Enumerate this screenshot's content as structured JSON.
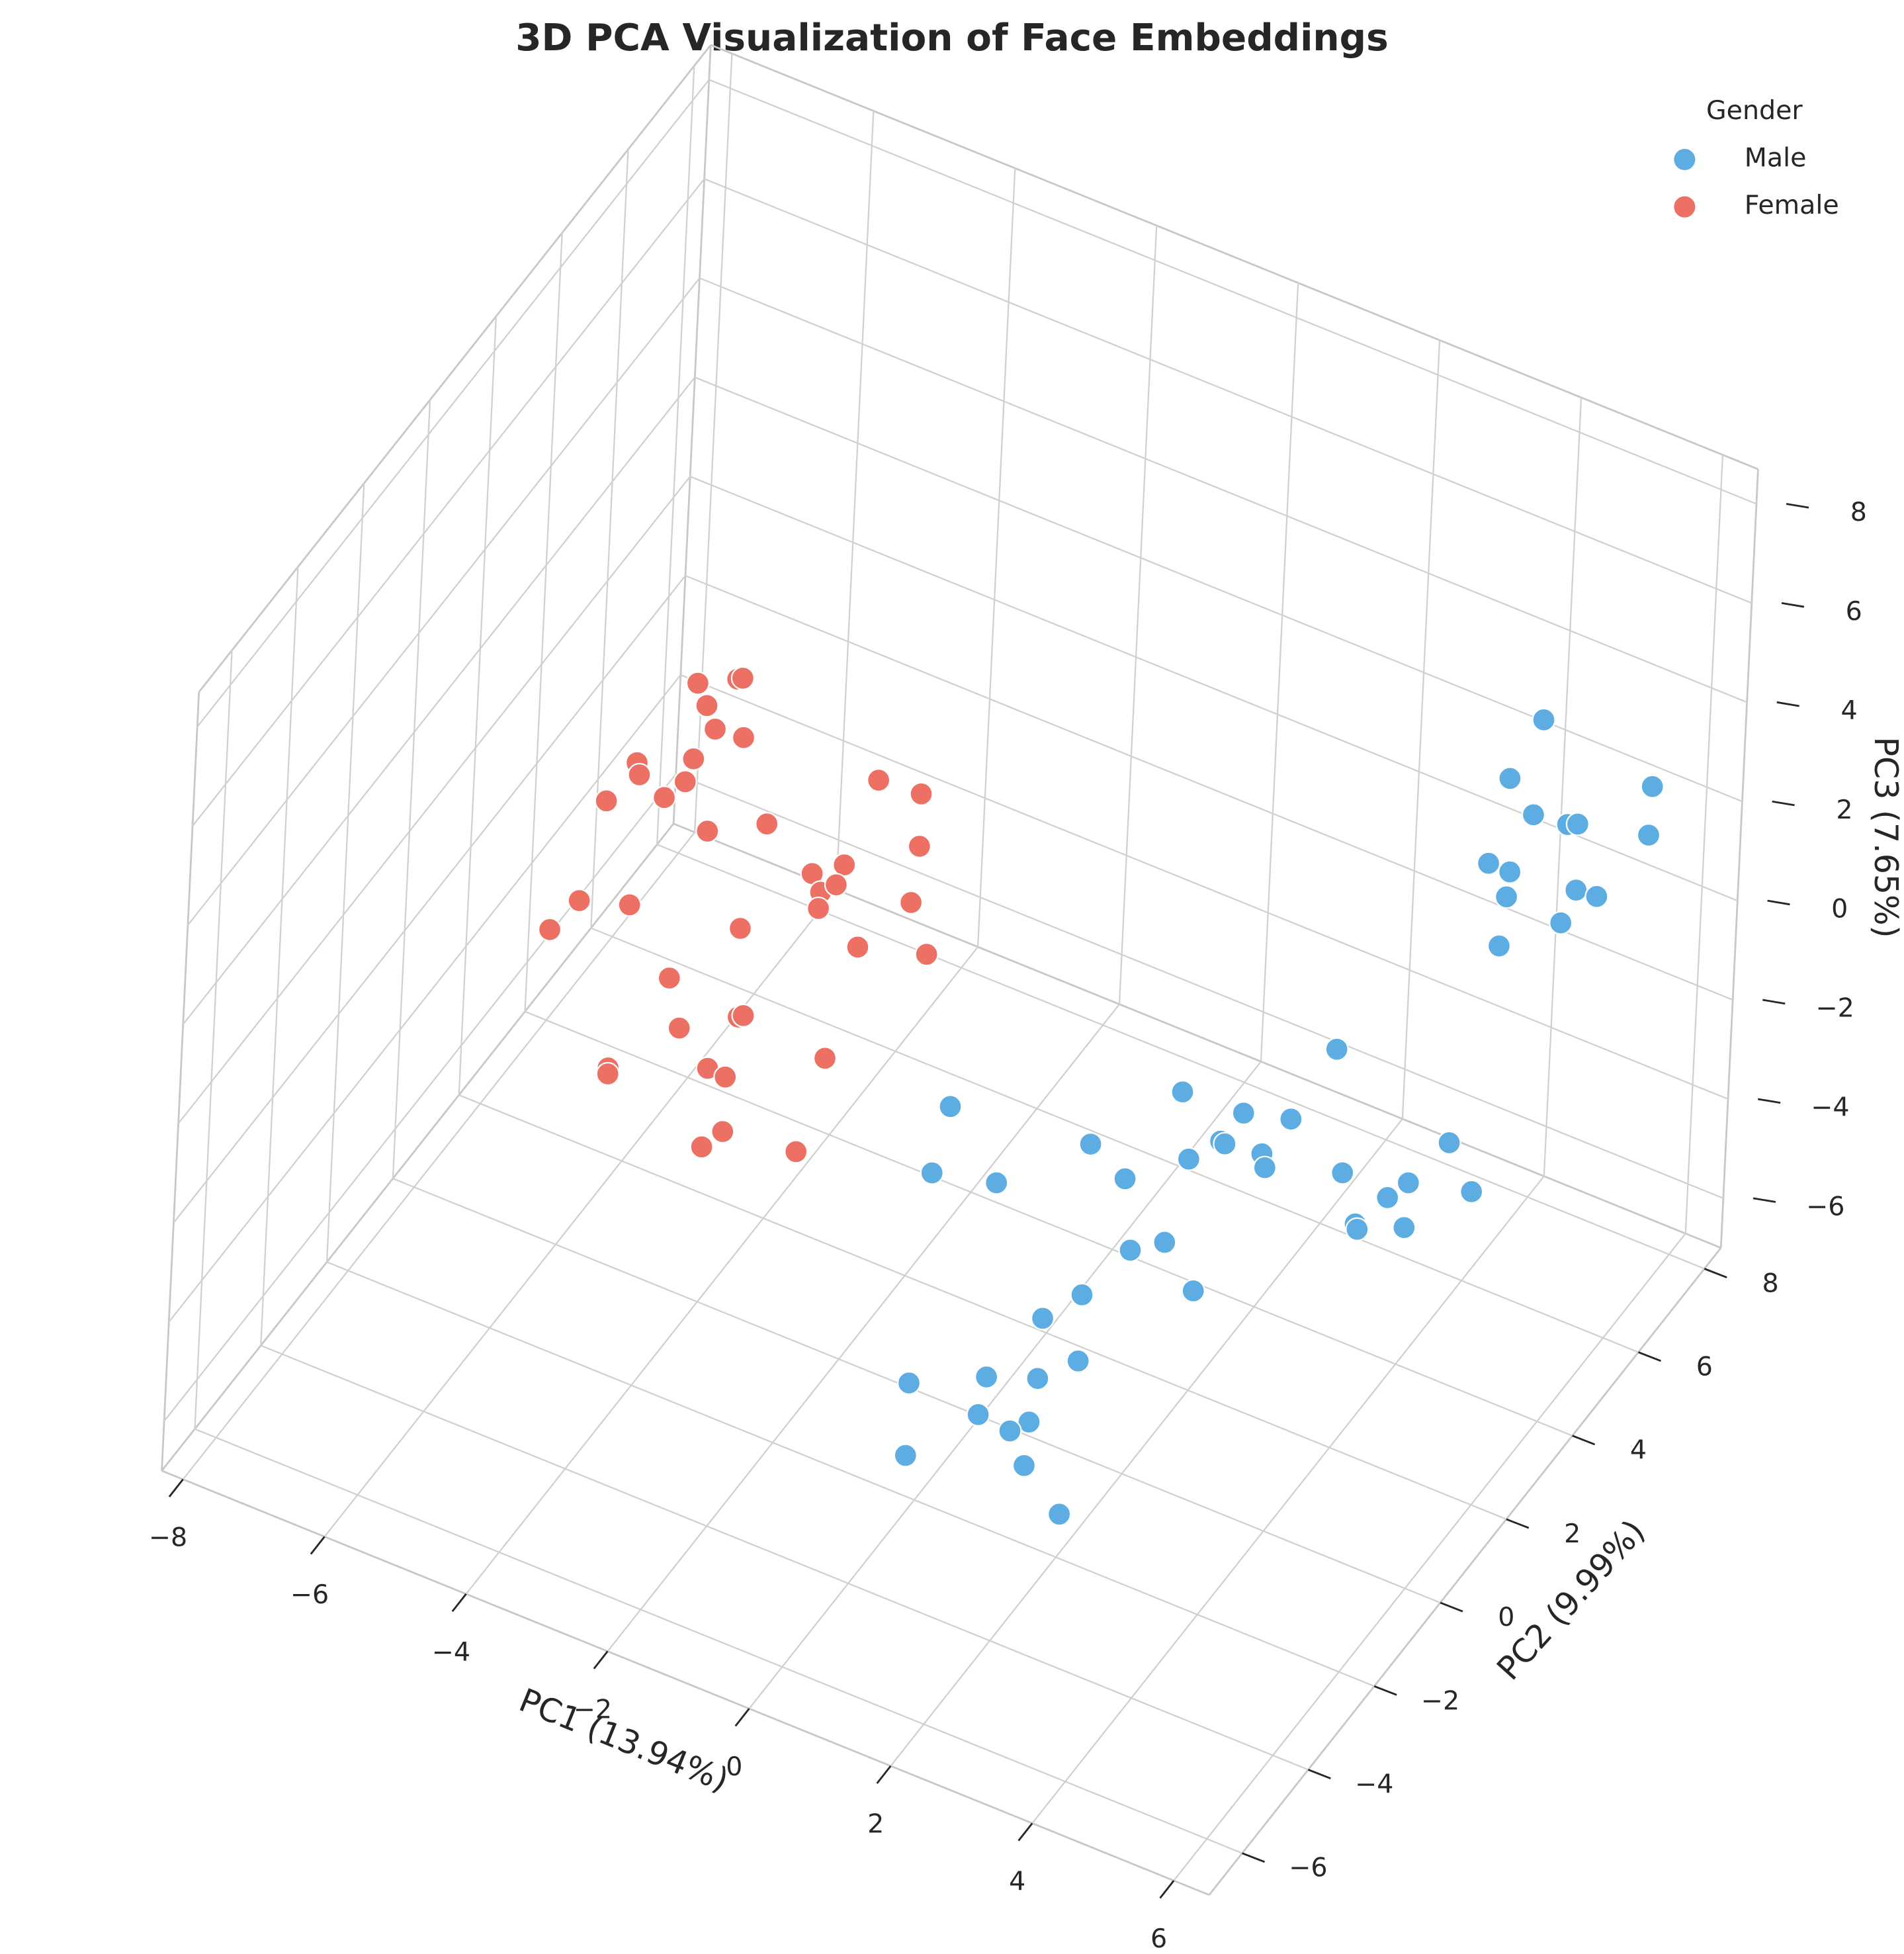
{
  "chart_data": {
    "type": "scatter3d",
    "title": "3D PCA Visualization of Face Embeddings",
    "xlabel": "PC1 (13.94%)",
    "ylabel": "PC2 (9.99%)",
    "zlabel": "PC3 (7.65%)",
    "legend_title": "Gender",
    "legend": "upper right",
    "grid": true,
    "xlim": [
      -8.3,
      6.5
    ],
    "ylim": [
      -7,
      8.5
    ],
    "zlim": [
      -7,
      8.7
    ],
    "xticks": [
      {
        "value": -8,
        "label": "−8"
      },
      {
        "value": -6,
        "label": "−6"
      },
      {
        "value": -4,
        "label": "−4"
      },
      {
        "value": -2,
        "label": "−2"
      },
      0,
      2,
      4,
      6
    ],
    "yticks": [
      {
        "value": -6,
        "label": "−6"
      },
      {
        "value": -4,
        "label": "−4"
      },
      {
        "value": -2,
        "label": "−2"
      },
      0,
      2,
      4,
      6,
      8
    ],
    "zticks": [
      {
        "value": -6,
        "label": "−6"
      },
      {
        "value": -4,
        "label": "−4"
      },
      {
        "value": -2,
        "label": "−2"
      },
      0,
      2,
      4,
      6,
      8
    ],
    "series": [
      {
        "name": "Male",
        "color": "#5dade2",
        "x": [
          5.99,
          3.88,
          4.74,
          5.4,
          0.67,
          2.64,
          4.44,
          4.5,
          4.01,
          5.02,
          5.07,
          6.32,
          0.46,
          1.36,
          3.14,
          6.15,
          5.78,
          5.5,
          5.8,
          5.07,
          5.1,
          5.75,
          3.26,
          3.73,
          4.16,
          2.62,
          2.09,
          2.61,
          0.28,
          1.35,
          2.06,
          1.26,
          1.97,
          1.71,
          0.28,
          1.93,
          2.45,
          3.91,
          3.48,
          5.46,
          3.83,
          4.31,
          4.45,
          5.44,
          3.24,
          3.54,
          4.47,
          4.76,
          3.51,
          4.28,
          3.44
        ],
        "y": [
          -3,
          -3,
          -3,
          -3,
          -3,
          -3,
          -3,
          -3,
          -3,
          -3,
          -3,
          0,
          -3,
          -3,
          -3,
          -3,
          0,
          0,
          2,
          0,
          0,
          0,
          -3,
          -3,
          -3,
          -3,
          -3,
          -3,
          -3,
          -3,
          -3,
          -3,
          -3,
          -3,
          -3,
          -3,
          -3,
          8,
          8,
          8,
          8,
          8,
          8,
          8,
          8,
          8,
          8,
          8,
          8,
          8,
          8
        ],
        "z": [
          6.39,
          4.31,
          4.38,
          4.64,
          2.16,
          2.54,
          3.64,
          3.62,
          3.03,
          3.72,
          3.47,
          2.17,
          0.7,
          1.02,
          2.13,
          3.99,
          1.05,
          0.59,
          -0.8,
          -0.19,
          -0.28,
          0.13,
          0.76,
          1.19,
          0.46,
          -0.51,
          -1.29,
          -1.85,
          -3.64,
          -2.9,
          -2.52,
          -3.71,
          -3.45,
          -3.78,
          -5.1,
          -4.35,
          -5.03,
          2.57,
          1.14,
          2.12,
          0.61,
          0.69,
          0.78,
          1.13,
          -0.71,
          -0.71,
          -0.54,
          -0.5,
          -1.23,
          -1.31,
          -2.26
        ]
      },
      {
        "name": "Female",
        "color": "#ec7063",
        "x": [
          -4.4,
          -3.85,
          -3.78,
          -4.26,
          -4.13,
          -3.73,
          -5.19,
          -4.41,
          -5.15,
          -4.51,
          -4.79,
          -5.59,
          -4.17,
          -3.35,
          -1.83,
          -1.23,
          -1.22,
          -2.69,
          -2.25,
          -2.56,
          -2.35,
          -2.58,
          -1.3,
          -3.65,
          -5.9,
          -5.2,
          -6.29,
          -2.01,
          -1.05,
          -4.6,
          -3.62,
          -3.55,
          -4.43,
          -2.39,
          -5.39,
          -5.39,
          -4.01,
          -3.76,
          -3.76,
          -4.04,
          -2.73
        ],
        "y": [
          0,
          0,
          0,
          0,
          0,
          0,
          0,
          0,
          0,
          0,
          0,
          0,
          0,
          0,
          0,
          0,
          0,
          0,
          0,
          0,
          0,
          0,
          0,
          0,
          0,
          0,
          0,
          0,
          0,
          0,
          0,
          0,
          0,
          0,
          0,
          0,
          0,
          0,
          0,
          0,
          0
        ],
        "z": [
          5.24,
          5.64,
          5.7,
          4.87,
          4.47,
          4.53,
          3.18,
          3.71,
          2.96,
          3.19,
          2.71,
          2.18,
          2.39,
          3.01,
          4.77,
          4.84,
          3.79,
          2.39,
          2.82,
          2.09,
          2.36,
          1.75,
          2.61,
          0.73,
          -0.01,
          0.31,
          -0.82,
          1.3,
          1.71,
          -0.82,
          -1.04,
          -0.97,
          -1.73,
          -1.16,
          -3.09,
          -3.21,
          -2.3,
          -2.33,
          -3.43,
          -3.9,
          -3.24
        ]
      }
    ]
  }
}
